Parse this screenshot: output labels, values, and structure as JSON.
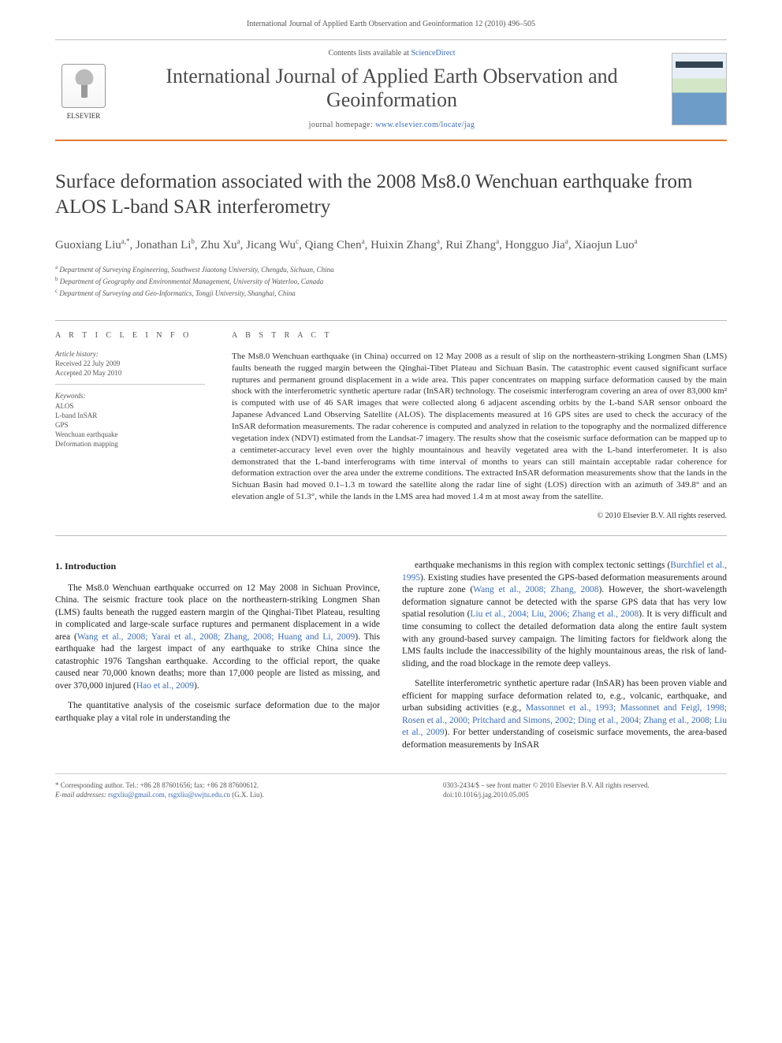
{
  "header": {
    "citation": "International Journal of Applied Earth Observation and Geoinformation 12 (2010) 496–505",
    "contents_line": "Contents lists available at ",
    "contents_link": "ScienceDirect",
    "journal_name": "International Journal of Applied Earth Observation and Geoinformation",
    "homepage_label": "journal homepage: ",
    "homepage_url": "www.elsevier.com/locate/jag",
    "publisher_logo_text": "ELSEVIER",
    "accent_color": "#e37933",
    "link_color": "#3a6cb5"
  },
  "article": {
    "title": "Surface deformation associated with the 2008 Ms8.0 Wenchuan earthquake from ALOS L-band SAR interferometry",
    "authors_raw": "Guoxiang Liu",
    "authors": [
      {
        "name": "Guoxiang Liu",
        "mark": "a,*"
      },
      {
        "name": "Jonathan Li",
        "mark": "b"
      },
      {
        "name": "Zhu Xu",
        "mark": "a"
      },
      {
        "name": "Jicang Wu",
        "mark": "c"
      },
      {
        "name": "Qiang Chen",
        "mark": "a"
      },
      {
        "name": "Huixin Zhang",
        "mark": "a"
      },
      {
        "name": "Rui Zhang",
        "mark": "a"
      },
      {
        "name": "Hongguo Jia",
        "mark": "a"
      },
      {
        "name": "Xiaojun Luo",
        "mark": "a"
      }
    ],
    "affiliations": [
      {
        "mark": "a",
        "text": "Department of Surveying Engineering, Southwest Jiaotong University, Chengdu, Sichuan, China"
      },
      {
        "mark": "b",
        "text": "Department of Geography and Environmental Management, University of Waterloo, Canada"
      },
      {
        "mark": "c",
        "text": "Department of Surveying and Geo-Informatics, Tongji University, Shanghai, China"
      }
    ]
  },
  "info": {
    "heading": "A R T I C L E  I N F O",
    "history_label": "Article history:",
    "received": "Received 22 July 2009",
    "accepted": "Accepted 20 May 2010",
    "keywords_label": "Keywords:",
    "keywords": [
      "ALOS",
      "L-band InSAR",
      "GPS",
      "Wenchuan earthquake",
      "Deformation mapping"
    ]
  },
  "abstract": {
    "heading": "A B S T R A C T",
    "text": "The Ms8.0 Wenchuan earthquake (in China) occurred on 12 May 2008 as a result of slip on the northeastern-striking Longmen Shan (LMS) faults beneath the rugged margin between the Qinghai-Tibet Plateau and Sichuan Basin. The catastrophic event caused significant surface ruptures and permanent ground displacement in a wide area. This paper concentrates on mapping surface deformation caused by the main shock with the interferometric synthetic aperture radar (InSAR) technology. The coseismic interferogram covering an area of over 83,000 km² is computed with use of 46 SAR images that were collected along 6 adjacent ascending orbits by the L-band SAR sensor onboard the Japanese Advanced Land Observing Satellite (ALOS). The displacements measured at 16 GPS sites are used to check the accuracy of the InSAR deformation measurements. The radar coherence is computed and analyzed in relation to the topography and the normalized difference vegetation index (NDVI) estimated from the Landsat-7 imagery. The results show that the coseismic surface deformation can be mapped up to a centimeter-accuracy level even over the highly mountainous and heavily vegetated area with the L-band interferometer. It is also demonstrated that the L-band interferograms with time interval of months to years can still maintain acceptable radar coherence for deformation extraction over the area under the extreme conditions. The extracted InSAR deformation measurements show that the lands in the Sichuan Basin had moved 0.1–1.3 m toward the satellite along the radar line of sight (LOS) direction with an azimuth of 349.8° and an elevation angle of 51.3°, while the lands in the LMS area had moved 1.4 m at most away from the satellite.",
    "copyright": "© 2010 Elsevier B.V. All rights reserved."
  },
  "body": {
    "section_number": "1.",
    "section_title": "Introduction",
    "p1a": "The Ms8.0 Wenchuan earthquake occurred on 12 May 2008 in Sichuan Province, China. The seismic fracture took place on the northeastern-striking Longmen Shan (LMS) faults beneath the rugged eastern margin of the Qinghai-Tibet Plateau, resulting in complicated and large-scale surface ruptures and permanent displacement in a wide area (",
    "p1_link1": "Wang et al., 2008; Yarai et al., 2008; Zhang, 2008; Huang and Li, 2009",
    "p1b": "). This earthquake had the largest impact of any earthquake to strike China since the catastrophic 1976 Tangshan earthquake. According to the official report, the quake caused near 70,000 known deaths; more than 17,000 people are listed as missing, and over 370,000 injured (",
    "p1_link2": "Hao et al., 2009",
    "p1c": ").",
    "p2": "The quantitative analysis of the coseismic surface deformation due to the major earthquake play a vital role in understanding the",
    "p3a": "earthquake mechanisms in this region with complex tectonic settings (",
    "p3_link1": "Burchfiel et al., 1995",
    "p3b": "). Existing studies have presented the GPS-based deformation measurements around the rupture zone (",
    "p3_link2": "Wang et al., 2008; Zhang, 2008",
    "p3c": "). However, the short-wavelength deformation signature cannot be detected with the sparse GPS data that has very low spatial resolution (",
    "p3_link3": "Liu et al., 2004; Liu, 2006; Zhang et al., 2008",
    "p3d": "). It is very difficult and time consuming to collect the detailed deformation data along the entire fault system with any ground-based survey campaign. The limiting factors for fieldwork along the LMS faults include the inaccessibility of the highly mountainous areas, the risk of land-sliding, and the road blockage in the remote deep valleys.",
    "p4a": "Satellite interferometric synthetic aperture radar (InSAR) has been proven viable and efficient for mapping surface deformation related to, e.g., volcanic, earthquake, and urban subsiding activities (e.g., ",
    "p4_link1": "Massonnet et al., 1993; Massonnet and Feigl, 1998; Rosen et al., 2000; Pritchard and Simons, 2002; Ding et al., 2004; Zhang et al., 2008; Liu et al., 2009",
    "p4b": "). For better understanding of coseismic surface movements, the area-based deformation measurements by InSAR"
  },
  "footer": {
    "corr_label": "* Corresponding author. Tel.: +86 28 87601656; fax: +86 28 87600612.",
    "email_label": "E-mail addresses:",
    "email1": "rsgxliu@gmail.com",
    "email2": "rsgxliu@swjtu.edu.cn",
    "email_tail": " (G.X. Liu).",
    "issn_line": "0303-2434/$ – see front matter © 2010 Elsevier B.V. All rights reserved.",
    "doi_label": "doi:",
    "doi": "10.1016/j.jag.2010.05.005"
  }
}
